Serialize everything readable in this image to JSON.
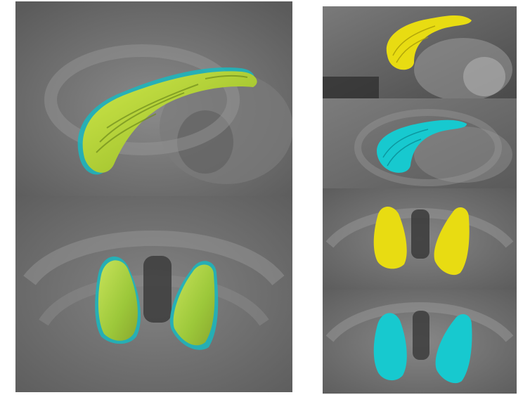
{
  "figure": {
    "panels": [
      {
        "id": "overlay-sagittal",
        "view": "sagittal",
        "structure_colors": [
          "yellow-green",
          "cyan"
        ]
      },
      {
        "id": "overlay-coronal",
        "view": "coronal",
        "structure_colors": [
          "yellow-green",
          "cyan"
        ]
      },
      {
        "id": "yellow-sagittal",
        "view": "sagittal",
        "structure_colors": [
          "yellow"
        ]
      },
      {
        "id": "cyan-sagittal",
        "view": "sagittal",
        "structure_colors": [
          "cyan"
        ]
      },
      {
        "id": "yellow-coronal",
        "view": "coronal",
        "structure_colors": [
          "yellow"
        ]
      },
      {
        "id": "cyan-coronal",
        "view": "coronal",
        "structure_colors": [
          "cyan"
        ]
      }
    ],
    "colors": {
      "background": "#ffffff",
      "mri_gray": "#6f6f6f",
      "overlay_green": "#b9d83a",
      "overlay_green_dark": "#7a9b22",
      "yellow": "#e8dc12",
      "yellow_dark": "#a89c08",
      "cyan": "#17c9cf",
      "cyan_dark": "#0b8d95"
    }
  }
}
